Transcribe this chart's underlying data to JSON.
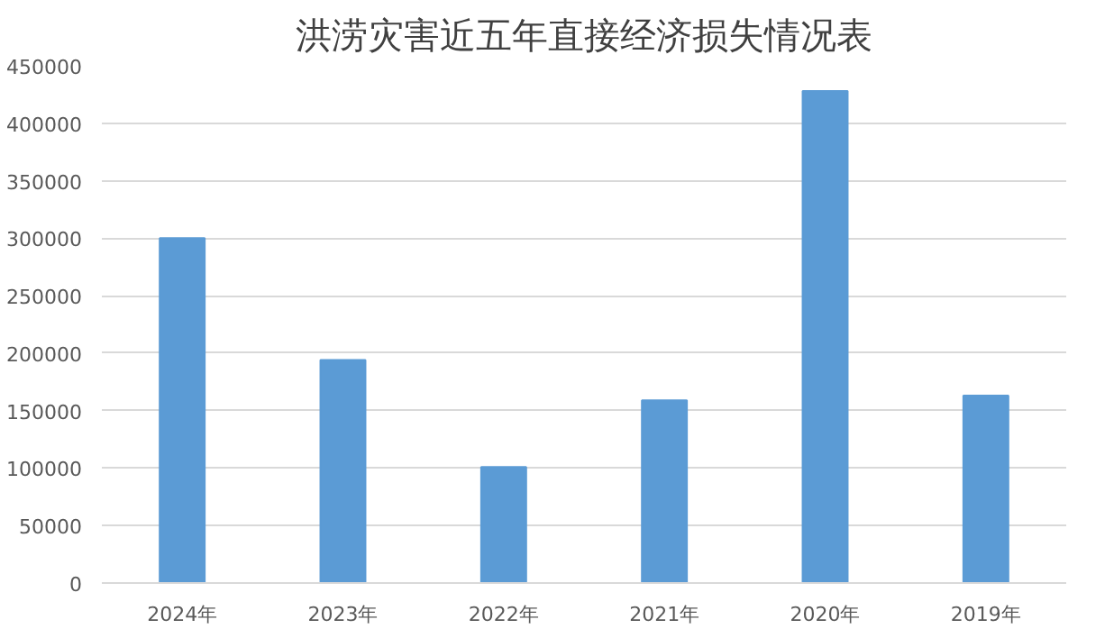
{
  "chart_data": {
    "type": "bar",
    "title": "洪涝灾害近五年直接经济损失情况表",
    "categories": [
      "2024年",
      "2023年",
      "2022年",
      "2021年",
      "2020年",
      "2019年"
    ],
    "values": [
      300000,
      194000,
      101000,
      159000,
      428000,
      163000
    ],
    "color": "#5b9bd5",
    "ylim": [
      0,
      450000
    ],
    "yticks": [
      0,
      50000,
      100000,
      150000,
      200000,
      250000,
      300000,
      350000,
      400000,
      450000
    ],
    "grid": "y"
  }
}
